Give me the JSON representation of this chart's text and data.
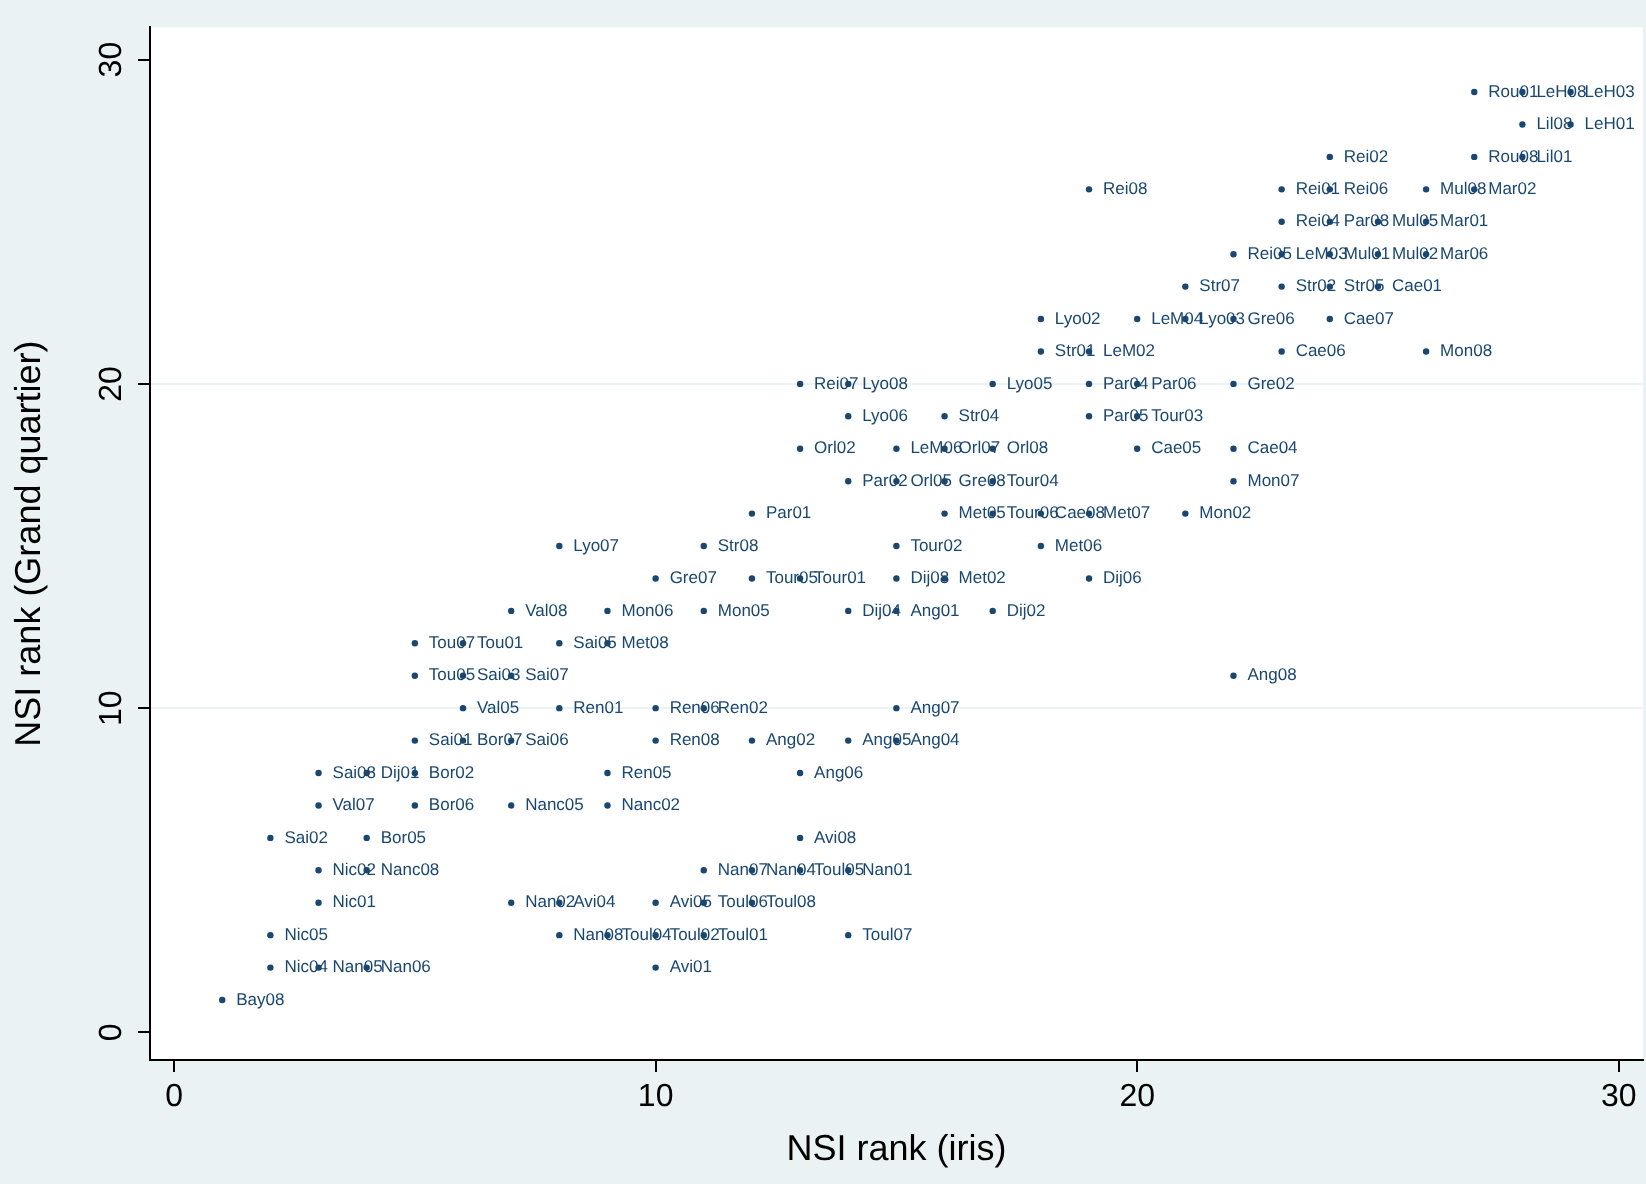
{
  "chart_data": {
    "type": "scatter",
    "xlabel": "NSI rank (iris)",
    "ylabel": "NSI rank (Grand quartier)",
    "xlim": [
      -0.5,
      30.5
    ],
    "ylim": [
      -0.85,
      31
    ],
    "xticks": [
      0,
      10,
      20,
      30
    ],
    "yticks": [
      0,
      10,
      20,
      30
    ],
    "grid": "y",
    "marker": "circle",
    "series": [
      {
        "color": "#1a476f",
        "x": [
          1,
          2,
          3,
          4,
          10,
          2,
          8,
          9,
          10,
          11,
          14,
          3,
          7,
          8,
          10,
          11,
          12,
          3,
          4,
          11,
          12,
          13,
          14,
          2,
          4,
          13,
          3,
          5,
          7,
          9,
          3,
          4,
          5,
          9,
          13,
          5,
          6,
          7,
          10,
          12,
          14,
          15,
          6,
          8,
          10,
          11,
          15,
          5,
          6,
          7,
          22,
          5,
          6,
          8,
          9,
          7,
          9,
          11,
          14,
          15,
          17,
          10,
          12,
          13,
          15,
          16,
          19,
          8,
          11,
          15,
          18,
          12,
          16,
          17,
          18,
          19,
          21,
          14,
          15,
          16,
          17,
          22,
          13,
          15,
          16,
          17,
          20,
          22,
          14,
          16,
          19,
          20,
          13,
          14,
          17,
          19,
          20,
          22,
          18,
          19,
          23,
          26,
          18,
          20,
          21,
          22,
          24,
          21,
          23,
          24,
          25,
          22,
          23,
          24,
          25,
          26,
          23,
          24,
          25,
          26,
          19,
          23,
          24,
          26,
          27,
          24,
          27,
          28,
          28,
          29,
          27,
          28,
          29
        ],
        "values": [
          1,
          2,
          2,
          2,
          2,
          3,
          3,
          3,
          3,
          3,
          3,
          4,
          4,
          4,
          4,
          4,
          4,
          5,
          5,
          5,
          5,
          5,
          5,
          6,
          6,
          6,
          7,
          7,
          7,
          7,
          8,
          8,
          8,
          8,
          8,
          9,
          9,
          9,
          9,
          9,
          9,
          9,
          10,
          10,
          10,
          10,
          10,
          11,
          11,
          11,
          11,
          12,
          12,
          12,
          12,
          13,
          13,
          13,
          13,
          13,
          13,
          14,
          14,
          14,
          14,
          14,
          14,
          15,
          15,
          15,
          15,
          16,
          16,
          16,
          16,
          16,
          16,
          17,
          17,
          17,
          17,
          17,
          18,
          18,
          18,
          18,
          18,
          18,
          19,
          19,
          19,
          19,
          20,
          20,
          20,
          20,
          20,
          20,
          21,
          21,
          21,
          21,
          22,
          22,
          22,
          22,
          22,
          23,
          23,
          23,
          23,
          24,
          24,
          24,
          24,
          24,
          25,
          25,
          25,
          25,
          26,
          26,
          26,
          26,
          26,
          27,
          27,
          27,
          28,
          28,
          29,
          29,
          29
        ],
        "value_labels": [
          "Bay08",
          "Nic04",
          "Nan05",
          "Nan06",
          "Avi01",
          "Nic05",
          "Nan08",
          "Toul04",
          "Toul02",
          "Toul01",
          "Toul07",
          "Nic01",
          "Nan02",
          "Avi04",
          "Avi05",
          "Toul06",
          "Toul08",
          "Nic02",
          "Nanc08",
          "Nan07",
          "Nan04",
          "Toul05",
          "Nan01",
          "Sai02",
          "Bor05",
          "Avi08",
          "Val07",
          "Bor06",
          "Nanc05",
          "Nanc02",
          "Sai08",
          "Dij01",
          "Bor02",
          "Ren05",
          "Ang06",
          "Sai01",
          "Bor07",
          "Sai06",
          "Ren08",
          "Ang02",
          "Ang05",
          "Ang04",
          "Val05",
          "Ren01",
          "Ren06",
          "Ren02",
          "Ang07",
          "Tou05",
          "Sai03",
          "Sai07",
          "Ang08",
          "Tou07",
          "Tou01",
          "Sai05",
          "Met08",
          "Val08",
          "Mon06",
          "Mon05",
          "Dij04",
          "Ang01",
          "Dij02",
          "Gre07",
          "Tour05",
          "Tour01",
          "Dij08",
          "Met02",
          "Dij06",
          "Lyo07",
          "Str08",
          "Tour02",
          "Met06",
          "Par01",
          "Met05",
          "Tour06",
          "Cae08",
          "Met07",
          "Mon02",
          "Par02",
          "Orl05",
          "Gre08",
          "Tour04",
          "Mon07",
          "Orl02",
          "LeM06",
          "Orl07",
          "Orl08",
          "Cae05",
          "Cae04",
          "Lyo06",
          "Str04",
          "Par05",
          "Tour03",
          "Rei07",
          "Lyo08",
          "Lyo05",
          "Par04",
          "Par06",
          "Gre02",
          "Str01",
          "LeM02",
          "Cae06",
          "Mon08",
          "Lyo02",
          "LeM04",
          "Lyo03",
          "Gre06",
          "Cae07",
          "Str07",
          "Str02",
          "Str05",
          "Cae01",
          "Rei05",
          "LeM03",
          "Mul01",
          "Mul02",
          "Mar06",
          "Rei04",
          "Par08",
          "Mul05",
          "Mar01",
          "Rei08",
          "Rei01",
          "Rei06",
          "Mul08",
          "Mar02",
          "Rei02",
          "Rou08",
          "Lil01",
          "Lil08",
          "LeH01",
          "Rou01",
          "LeH08",
          "LeH03"
        ]
      }
    ]
  }
}
